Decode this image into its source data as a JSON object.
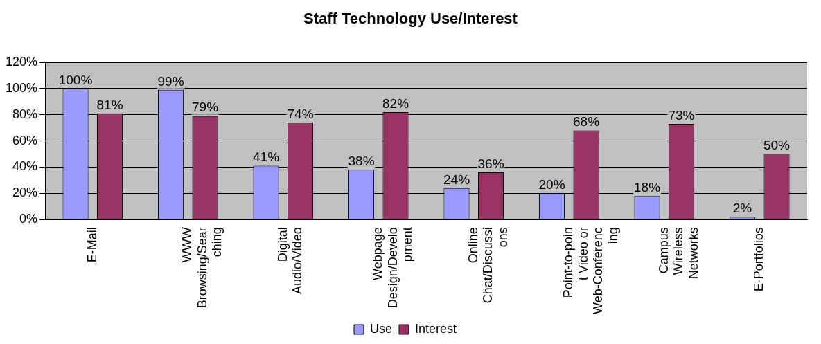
{
  "chart_data": {
    "type": "bar",
    "title": "Staff Technology Use/Interest",
    "categories": [
      "E-Mail",
      "WWW Browsing/Searching",
      "Digital Audio/Video",
      "Webpage Design/Development",
      "Online Chat/Discussions",
      "Point-to-point Video or Web-Conferencing",
      "Campus Wireless Networks",
      "E-Portfolios"
    ],
    "series": [
      {
        "name": "Use",
        "color": "#9999ff",
        "values": [
          100,
          99,
          41,
          38,
          24,
          20,
          18,
          2
        ],
        "value_labels": [
          "100%",
          "99%",
          "41%",
          "38%",
          "24%",
          "20%",
          "18%",
          "2%"
        ]
      },
      {
        "name": "Interest",
        "color": "#993366",
        "values": [
          81,
          79,
          74,
          82,
          36,
          68,
          73,
          50
        ],
        "value_labels": [
          "81%",
          "79%",
          "74%",
          "82%",
          "36%",
          "68%",
          "73%",
          "50%"
        ]
      }
    ],
    "ylim": [
      0,
      120
    ],
    "yticks": [
      {
        "value": 0,
        "label": "0%"
      },
      {
        "value": 20,
        "label": "20%"
      },
      {
        "value": 40,
        "label": "40%"
      },
      {
        "value": 60,
        "label": "60%"
      },
      {
        "value": 80,
        "label": "80%"
      },
      {
        "value": 100,
        "label": "100%"
      },
      {
        "value": 120,
        "label": "120%"
      }
    ],
    "grid": "y",
    "legend": "bottom"
  }
}
